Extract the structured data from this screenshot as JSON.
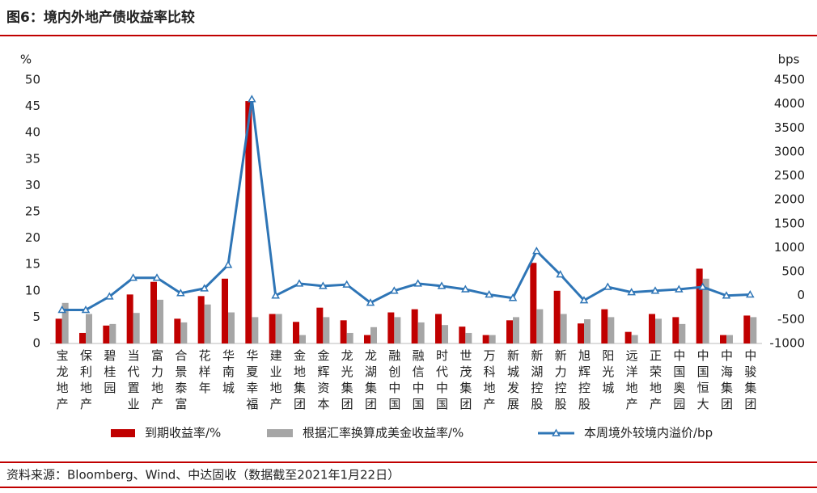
{
  "chart_data": {
    "type": "bar-line",
    "title": "图6：境内外地产债收益率比较",
    "source": "资料来源：Bloomberg、Wind、中达固收（数据截至2021年1月22日）",
    "y_label": "%",
    "y2_label": "bps",
    "categories": [
      "宝龙地产",
      "保利地产",
      "碧桂园",
      "当代置业",
      "富力地产",
      "合景泰富",
      "花样年",
      "华南城",
      "华夏幸福",
      "建业地产",
      "金地集团",
      "金辉资本",
      "龙光集团",
      "龙湖集团",
      "融创中国",
      "融信中国",
      "时代中国",
      "世茂集团",
      "万科地产",
      "新城发展",
      "新湖控股",
      "新力控股",
      "旭辉控股",
      "阳光城",
      "远洋地产",
      "正荣地产",
      "中国奥园",
      "中国恒大",
      "中海集团",
      "中骏集团"
    ],
    "series": [
      {
        "name": "到期收益率/%",
        "type": "bar",
        "color": "#c00000",
        "values": [
          4.7,
          2.0,
          3.4,
          9.3,
          11.7,
          4.7,
          9.0,
          12.3,
          46,
          5.6,
          4.1,
          6.8,
          4.4,
          1.6,
          5.9,
          6.5,
          5.6,
          3.2,
          1.6,
          4.4,
          15.3,
          10.0,
          3.8,
          6.5,
          2.2,
          5.6,
          5.0,
          14.2,
          1.6,
          5.3
        ]
      },
      {
        "name": "根据汇率换算成美金收益率/%",
        "type": "bar",
        "color": "#a6a6a6",
        "values": [
          7.7,
          5.6,
          3.7,
          5.8,
          8.3,
          4.0,
          7.4,
          5.9,
          5.0,
          5.6,
          1.6,
          5.0,
          2.0,
          3.1,
          5.0,
          4.0,
          3.5,
          2.0,
          1.6,
          5.0,
          6.5,
          5.6,
          4.6,
          5.0,
          1.6,
          4.7,
          3.7,
          12.3,
          1.6,
          5.0
        ]
      },
      {
        "name": "本周境外较境内溢价/bp",
        "type": "line",
        "axis": "y2",
        "color": "#2e75b6",
        "values": [
          -300,
          -300,
          -20,
          370,
          370,
          50,
          150,
          640,
          4100,
          0,
          250,
          200,
          230,
          -150,
          100,
          250,
          200,
          130,
          20,
          -50,
          930,
          440,
          -100,
          180,
          70,
          100,
          130,
          180,
          0,
          20
        ]
      }
    ],
    "ylim": [
      0,
      50
    ],
    "yticks": [
      0,
      5,
      10,
      15,
      20,
      25,
      30,
      35,
      40,
      45,
      50
    ],
    "y2lim": [
      -1000,
      4500
    ],
    "y2ticks": [
      -1000,
      -500,
      0,
      500,
      1000,
      1500,
      2000,
      2500,
      3000,
      3500,
      4000,
      4500
    ],
    "grid": false
  }
}
